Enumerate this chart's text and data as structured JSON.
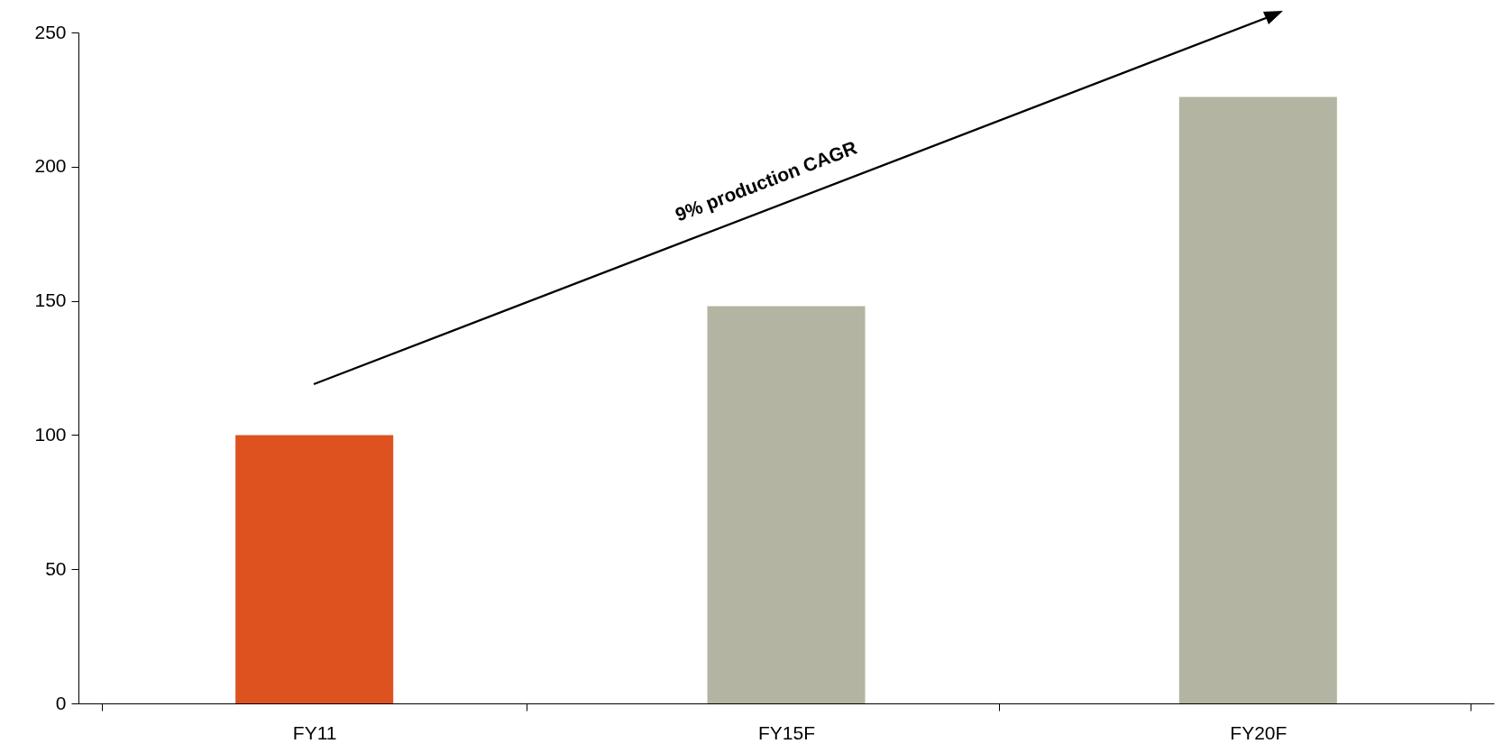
{
  "chart_data": {
    "type": "bar",
    "categories": [
      "FY11",
      "FY15F",
      "FY20F"
    ],
    "values": [
      100,
      148,
      226
    ],
    "colors": [
      "#de5220",
      "#b3b4a2",
      "#b3b4a2"
    ],
    "ylim": [
      0,
      250
    ],
    "yticks": [
      0,
      50,
      100,
      150,
      200,
      250
    ],
    "grid": false,
    "annotations": [
      "9% production CAGR"
    ]
  }
}
